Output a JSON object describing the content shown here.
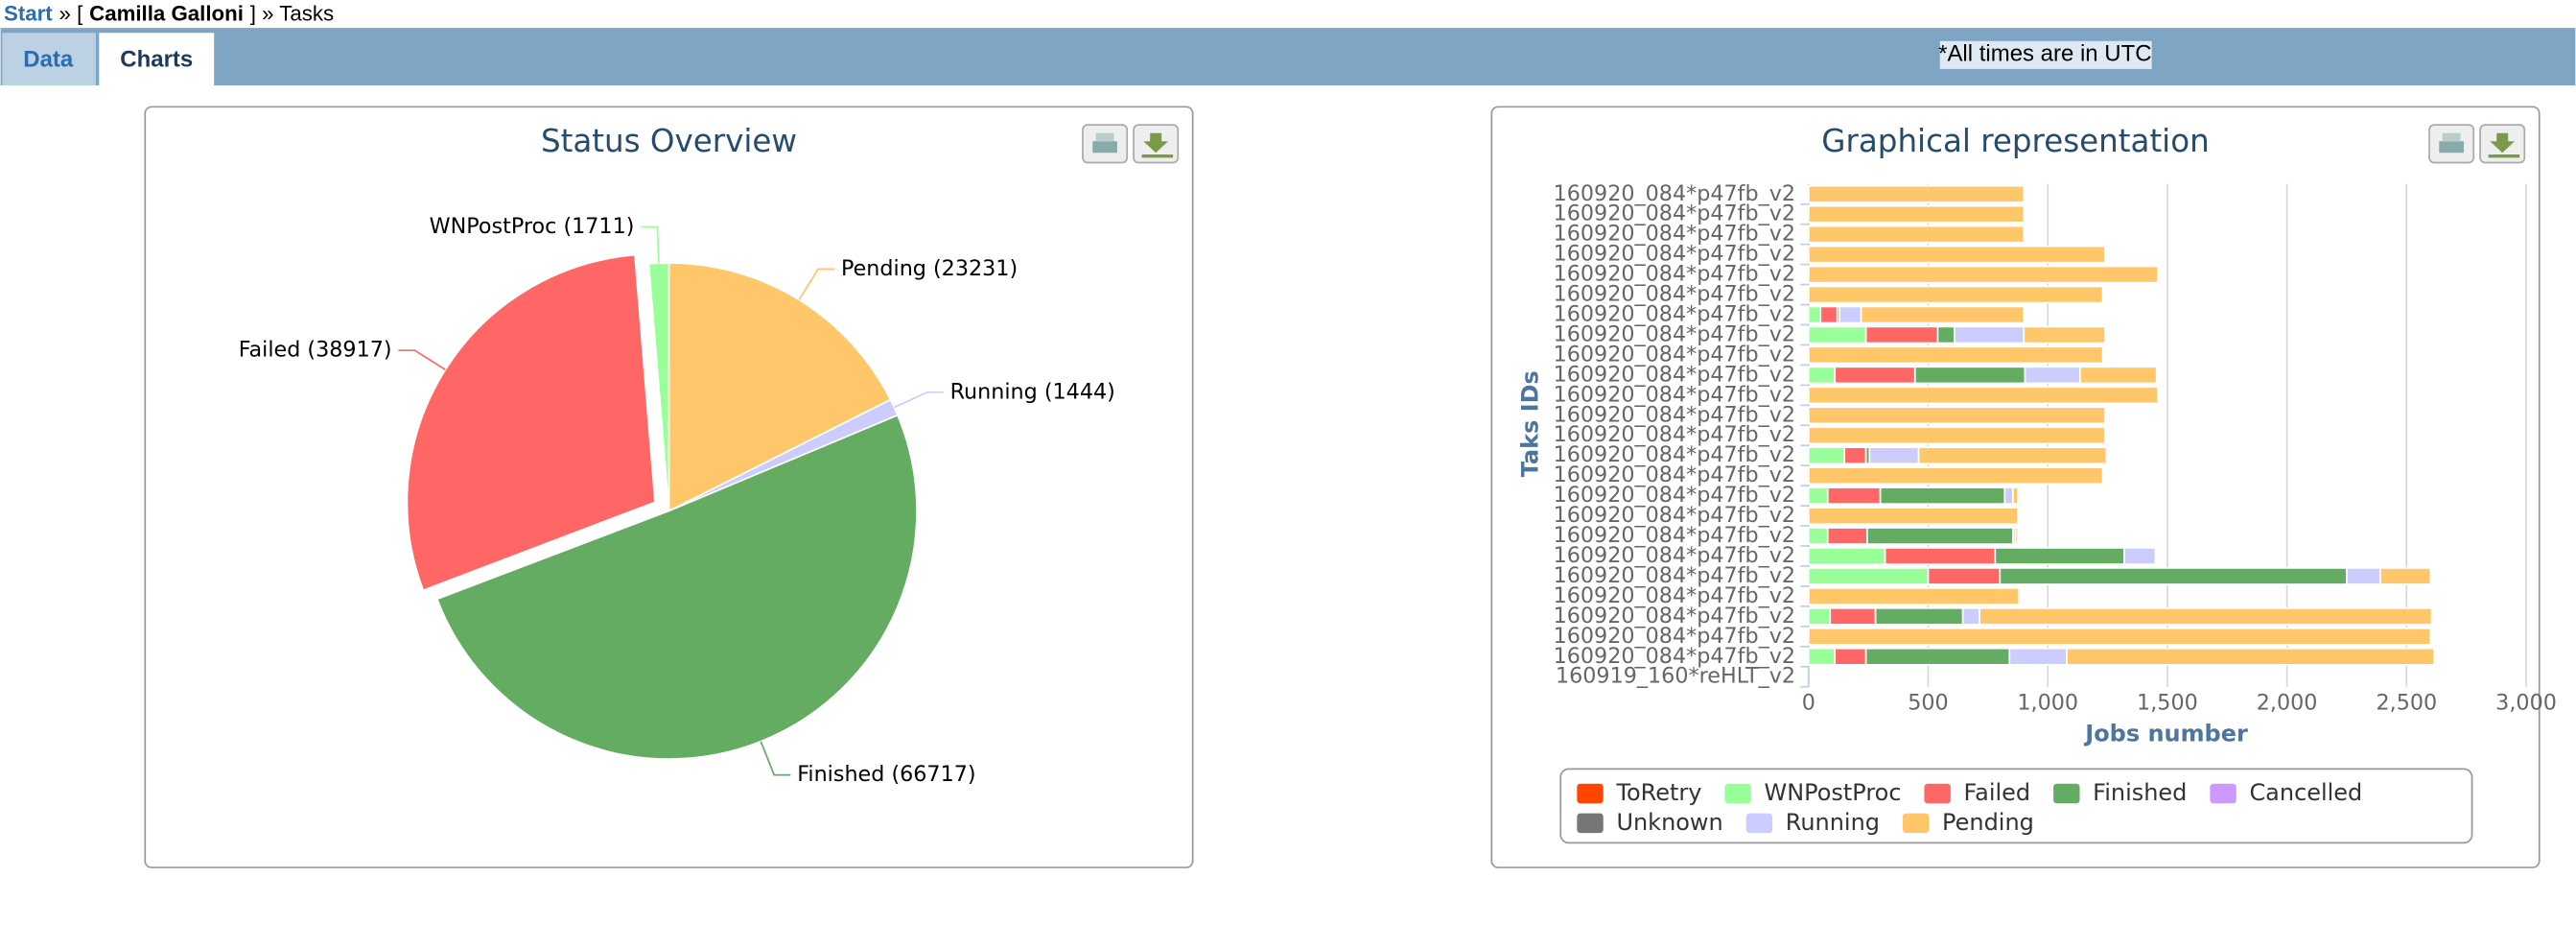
{
  "breadcrumb": [
    "Start",
    "» [",
    "Camilla Galloni",
    "] » Tasks"
  ],
  "tabs": [
    "Data",
    "Charts"
  ],
  "note": "*All times are in UTC",
  "chart_data": [
    {
      "type": "pie",
      "title": "Status Overview",
      "values": [
        23231,
        1444,
        66717,
        38917,
        1711
      ],
      "value_labels": [
        "Pending (23231)",
        "Running (1444)",
        "Finished (66717)",
        "Failed (38917)",
        "WNPostProc (1711)"
      ],
      "colors": [
        "#ffc66a",
        "#ccccff",
        "#63ac62",
        "#ff6666",
        "#99ff99"
      ],
      "exploded": [
        false,
        false,
        false,
        true,
        false
      ]
    },
    {
      "type": "bar",
      "title": "Graphical representation",
      "y_label": "Taks IDs",
      "x_label": "Jobs number",
      "stacked": true,
      "grid": true,
      "legend": "bottom",
      "categories": [
        "160920_084*p47fb_v2",
        "160920_084*p47fb_v2",
        "160920_084*p47fb_v2",
        "160920_084*p47fb_v2",
        "160920_084*p47fb_v2",
        "160920_084*p47fb_v2",
        "160920_084*p47fb_v2",
        "160920_084*p47fb_v2",
        "160920_084*p47fb_v2",
        "160920_084*p47fb_v2",
        "160920_084*p47fb_v2",
        "160920_084*p47fb_v2",
        "160920_084*p47fb_v2",
        "160920_084*p47fb_v2",
        "160920_084*p47fb_v2",
        "160920_084*p47fb_v2",
        "160920_084*p47fb_v2",
        "160920_084*p47fb_v2",
        "160920_084*p47fb_v2",
        "160920_084*p47fb_v2",
        "160920_084*p47fb_v2",
        "160920_084*p47fb_v2",
        "160920_084*p47fb_v2",
        "160920_084*p47fb_v2",
        "160919_160*reHLT_v2"
      ],
      "series": [
        {
          "name": "ToRetry",
          "color": "#ff4500",
          "values": [
            0,
            0,
            0,
            0,
            0,
            0,
            0,
            0,
            0,
            0,
            0,
            0,
            0,
            0,
            0,
            0,
            0,
            0,
            0,
            0,
            0,
            0,
            0,
            0,
            0
          ]
        },
        {
          "name": "WNPostProc",
          "color": "#99ff99",
          "values": [
            0,
            0,
            0,
            0,
            0,
            0,
            50,
            240,
            0,
            110,
            0,
            0,
            0,
            150,
            0,
            80,
            0,
            80,
            320,
            500,
            0,
            90,
            0,
            110,
            0
          ]
        },
        {
          "name": "Failed",
          "color": "#ff6666",
          "values": [
            0,
            0,
            0,
            0,
            0,
            0,
            70,
            300,
            0,
            335,
            0,
            0,
            0,
            90,
            0,
            220,
            0,
            165,
            460,
            300,
            0,
            190,
            0,
            130,
            0
          ]
        },
        {
          "name": "Finished",
          "color": "#63ac62",
          "values": [
            0,
            0,
            0,
            0,
            0,
            0,
            10,
            70,
            0,
            460,
            0,
            0,
            0,
            15,
            0,
            520,
            0,
            610,
            540,
            1450,
            0,
            365,
            0,
            600,
            0
          ]
        },
        {
          "name": "Cancelled",
          "color": "#cc99ff",
          "values": [
            0,
            0,
            0,
            0,
            0,
            0,
            0,
            0,
            0,
            0,
            0,
            0,
            0,
            0,
            0,
            0,
            0,
            0,
            0,
            0,
            0,
            0,
            0,
            0,
            0
          ]
        },
        {
          "name": "Unknown",
          "color": "#777777",
          "values": [
            0,
            0,
            0,
            0,
            0,
            0,
            0,
            0,
            0,
            0,
            0,
            0,
            0,
            0,
            0,
            0,
            0,
            0,
            0,
            0,
            0,
            0,
            0,
            0,
            0
          ]
        },
        {
          "name": "Running",
          "color": "#ccccff",
          "values": [
            0,
            0,
            0,
            0,
            0,
            0,
            90,
            290,
            0,
            230,
            0,
            0,
            0,
            205,
            0,
            35,
            0,
            10,
            130,
            140,
            0,
            70,
            0,
            240,
            0
          ]
        },
        {
          "name": "Pending",
          "color": "#ffc66a",
          "values": [
            900,
            900,
            900,
            1240,
            1460,
            1230,
            680,
            340,
            1230,
            320,
            1460,
            1240,
            1240,
            785,
            1230,
            20,
            875,
            10,
            0,
            210,
            880,
            1890,
            2600,
            1535,
            0
          ]
        }
      ],
      "xlim": [
        0,
        3000
      ],
      "xticks": [
        0,
        500,
        {
          "value": 1000,
          "label": "1,000"
        },
        {
          "value": 1500,
          "label": "1,500"
        },
        {
          "value": 2000,
          "label": "2,000"
        },
        {
          "value": 2500,
          "label": "2,500"
        },
        {
          "value": 3000,
          "label": "3,000"
        }
      ]
    }
  ]
}
